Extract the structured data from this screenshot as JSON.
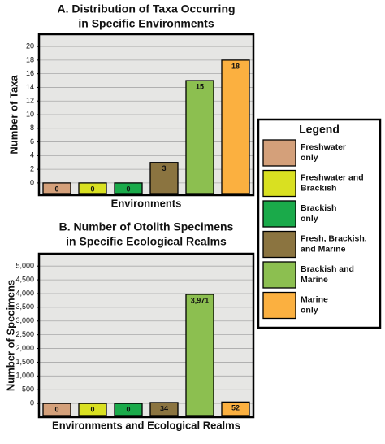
{
  "chart_data": [
    {
      "type": "bar",
      "title": [
        "A. Distribution of Taxa Occurring",
        "in Specific Environments"
      ],
      "y_label": "Number of Taxa",
      "x_label": "Environments",
      "values": [
        0,
        0,
        0,
        3,
        15,
        18
      ],
      "ylim": [
        -1.8,
        21.8
      ],
      "yticks": [
        0,
        2,
        4,
        6,
        8,
        10,
        12,
        14,
        16,
        18,
        20
      ],
      "grid": true
    },
    {
      "type": "bar",
      "title": [
        "B. Number of Otolith Specimens",
        "in Specific Ecological Realms"
      ],
      "y_label": "Number of Specimens",
      "x_label": "Environments and Ecological Realms",
      "values": [
        0,
        0,
        0,
        34,
        3971,
        52
      ],
      "value_labels": [
        "0",
        "0",
        "0",
        "34",
        "3,971",
        "52"
      ],
      "ylim": [
        -500,
        5450
      ],
      "yticks": [
        0,
        {
          "value": 500,
          "label": "500"
        },
        {
          "value": 1000,
          "label": "1,000"
        },
        {
          "value": 1500,
          "label": "1,500"
        },
        {
          "value": 2000,
          "label": "2,000"
        },
        {
          "value": 2500,
          "label": "2,500"
        },
        {
          "value": 3000,
          "label": "3,000"
        },
        {
          "value": 3500,
          "label": "3,500"
        },
        {
          "value": 4000,
          "label": "4,000"
        },
        {
          "value": 4500,
          "label": "4,500"
        },
        {
          "value": 5000,
          "label": "5,000"
        }
      ],
      "grid": true
    }
  ],
  "legend": {
    "title": "Legend",
    "items": [
      {
        "label": [
          "Freshwater",
          "only"
        ],
        "color": "#d4a07a"
      },
      {
        "label": [
          "Freshwater and",
          "Brackish"
        ],
        "color": "#d9e021"
      },
      {
        "label": [
          "Brackish",
          "only"
        ],
        "color": "#1aaa4a"
      },
      {
        "label": [
          "Fresh, Brackish,",
          "and Marine"
        ],
        "color": "#8b7440"
      },
      {
        "label": [
          "Brackish and",
          "Marine"
        ],
        "color": "#8cbf50"
      },
      {
        "label": [
          "Marine",
          "only"
        ],
        "color": "#fbb040"
      }
    ]
  }
}
